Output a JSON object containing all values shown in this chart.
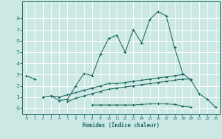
{
  "x": [
    0,
    1,
    2,
    3,
    4,
    5,
    6,
    7,
    8,
    9,
    10,
    11,
    12,
    13,
    14,
    15,
    16,
    17,
    18,
    19,
    20,
    21,
    22,
    23
  ],
  "line1": [
    2.9,
    2.6,
    null,
    1.1,
    0.7,
    0.8,
    2.0,
    3.1,
    2.9,
    4.8,
    6.2,
    6.5,
    5.0,
    7.0,
    5.8,
    7.9,
    8.6,
    8.2,
    5.4,
    3.1,
    2.5,
    1.3,
    0.8,
    0.1
  ],
  "line2": [
    null,
    null,
    1.0,
    1.1,
    1.0,
    1.2,
    1.4,
    1.6,
    1.8,
    2.0,
    2.2,
    2.2,
    2.3,
    2.4,
    2.5,
    2.6,
    2.7,
    2.8,
    2.9,
    3.0,
    null,
    null,
    null,
    null
  ],
  "line3": [
    null,
    null,
    null,
    null,
    null,
    0.6,
    0.9,
    1.1,
    1.3,
    1.5,
    1.7,
    1.8,
    1.9,
    2.0,
    2.1,
    2.2,
    2.3,
    2.4,
    2.5,
    2.6,
    2.6,
    null,
    null,
    null
  ],
  "line4": [
    null,
    null,
    null,
    null,
    null,
    null,
    null,
    null,
    0.3,
    0.3,
    0.3,
    0.3,
    0.3,
    0.3,
    0.35,
    0.4,
    0.4,
    0.4,
    0.35,
    0.2,
    0.1,
    null,
    null,
    null
  ],
  "xlabel": "Humidex (Indice chaleur)",
  "xlim": [
    -0.5,
    23.5
  ],
  "ylim": [
    -0.5,
    9.5
  ],
  "yticks": [
    0,
    1,
    2,
    3,
    4,
    5,
    6,
    7,
    8
  ],
  "xticks": [
    0,
    1,
    2,
    3,
    4,
    5,
    6,
    7,
    8,
    9,
    10,
    11,
    12,
    13,
    14,
    15,
    16,
    17,
    18,
    19,
    20,
    21,
    22,
    23
  ],
  "line_color": "#1e6b5e",
  "bg_color": "#cce8e4",
  "grid_color": "#ffffff",
  "marker": "+"
}
